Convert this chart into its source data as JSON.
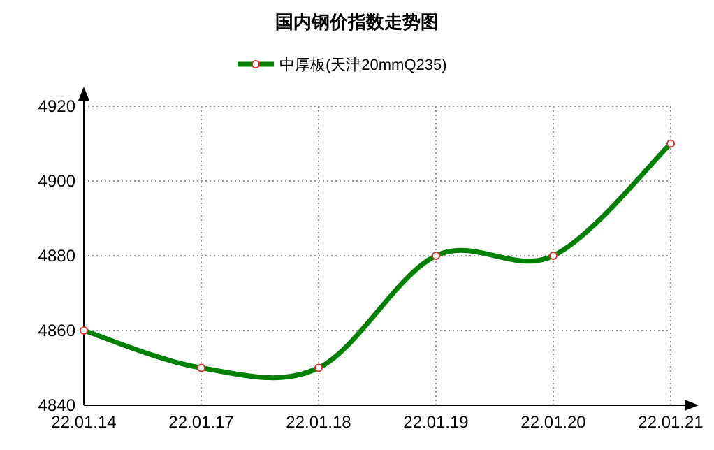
{
  "chart_data": {
    "type": "line",
    "title": "国内钢价指数走势图",
    "categories": [
      "22.01.14",
      "22.01.17",
      "22.01.18",
      "22.01.19",
      "22.01.20",
      "22.01.21"
    ],
    "series": [
      {
        "name": "中厚板(天津20mmQ235)",
        "color": "#008000",
        "values": [
          4860,
          4850,
          4850,
          4880,
          4880,
          4910
        ]
      }
    ],
    "ylim": [
      4840,
      4920
    ],
    "yticks": [
      4840,
      4860,
      4880,
      4900,
      4920
    ],
    "grid": true,
    "legend": "top",
    "marker": "circle",
    "line_style": "solid"
  }
}
